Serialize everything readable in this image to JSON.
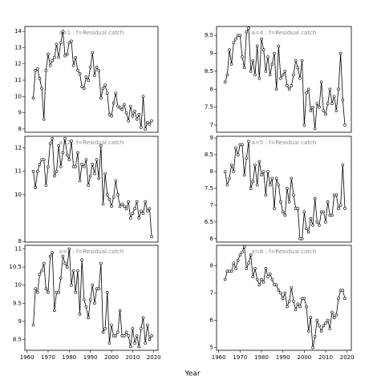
{
  "x_label": "Year",
  "chart_data": [
    {
      "type": "line",
      "title": "a=1 : f=Residual catch",
      "xlim": [
        1959,
        2022
      ],
      "ylim": [
        7.8,
        14.3
      ],
      "yticks": [
        8,
        9,
        10,
        11,
        12,
        13,
        14
      ],
      "x": [
        1963,
        1964,
        1965,
        1966,
        1967,
        1968,
        1969,
        1970,
        1971,
        1972,
        1973,
        1974,
        1975,
        1976,
        1977,
        1978,
        1979,
        1980,
        1981,
        1982,
        1983,
        1984,
        1985,
        1986,
        1987,
        1988,
        1989,
        1990,
        1991,
        1992,
        1993,
        1994,
        1995,
        1996,
        1997,
        1998,
        1999,
        2000,
        2001,
        2002,
        2003,
        2004,
        2005,
        2006,
        2007,
        2008,
        2009,
        2010,
        2011,
        2012,
        2013,
        2014,
        2015,
        2016,
        2017,
        2018,
        2019
      ],
      "series": [
        {
          "color": "#000000",
          "values": [
            9.9,
            11.6,
            11.7,
            11.1,
            10.5,
            8.6,
            11.6,
            12.6,
            11.9,
            12.2,
            12.4,
            13.2,
            12.4,
            13.3,
            14.0,
            12.5,
            12.6,
            13.3,
            13.4,
            11.9,
            12.4,
            11.6,
            11.4,
            10.6,
            10.5,
            11.2,
            11.0,
            11.8,
            12.7,
            11.3,
            11.8,
            11.6,
            9.9,
            10.5,
            10.7,
            10.2,
            8.9,
            8.8,
            9.6,
            10.2,
            9.4,
            9.3,
            9.2,
            9.5,
            9.0,
            8.5,
            9.4,
            8.8,
            9.1,
            8.6,
            8.9,
            8.1,
            10.0,
            8.0,
            8.4,
            8.3,
            8.5
          ]
        }
      ]
    },
    {
      "type": "line",
      "title": "a=2 : f=Residual catch",
      "xlim": [
        1959,
        2022
      ],
      "ylim": [
        7.97,
        12.5
      ],
      "yticks": [
        8,
        10,
        11,
        12
      ],
      "x": [
        1963,
        1964,
        1965,
        1966,
        1967,
        1968,
        1969,
        1970,
        1971,
        1972,
        1973,
        1974,
        1975,
        1976,
        1977,
        1978,
        1979,
        1980,
        1981,
        1982,
        1983,
        1984,
        1985,
        1986,
        1987,
        1988,
        1989,
        1990,
        1991,
        1992,
        1993,
        1994,
        1995,
        1996,
        1997,
        1998,
        1999,
        2000,
        2001,
        2002,
        2003,
        2004,
        2005,
        2006,
        2007,
        2008,
        2009,
        2010,
        2011,
        2012,
        2013,
        2014,
        2015,
        2016,
        2017,
        2018,
        2019
      ],
      "series": [
        {
          "color": "#000000",
          "values": [
            11.0,
            10.3,
            11.0,
            11.3,
            11.5,
            11.5,
            10.4,
            11.2,
            12.2,
            12.4,
            10.8,
            11.0,
            12.1,
            11.2,
            11.8,
            12.4,
            11.7,
            11.5,
            12.3,
            11.2,
            11.2,
            11.8,
            10.6,
            11.3,
            11.2,
            11.5,
            10.4,
            10.8,
            11.3,
            10.9,
            11.5,
            10.7,
            12.1,
            9.6,
            10.9,
            10.0,
            9.8,
            9.5,
            9.9,
            10.6,
            10.0,
            9.5,
            9.6,
            9.5,
            9.4,
            9.7,
            9.0,
            9.2,
            9.4,
            9.7,
            9.0,
            9.3,
            9.2,
            9.7,
            9.3,
            9.4,
            8.2
          ]
        }
      ]
    },
    {
      "type": "line",
      "title": "a=3 : f=Residual catch",
      "xlim": [
        1959,
        2022
      ],
      "ylim": [
        8.2,
        11.1
      ],
      "yticks": [
        8.5,
        9.0,
        9.5,
        10.0,
        10.5,
        11.0
      ],
      "xticks": [
        1960,
        1970,
        1980,
        1990,
        2000,
        2010,
        2020
      ],
      "x": [
        1963,
        1964,
        1965,
        1966,
        1967,
        1968,
        1969,
        1970,
        1971,
        1972,
        1973,
        1974,
        1975,
        1976,
        1977,
        1978,
        1979,
        1980,
        1981,
        1982,
        1983,
        1984,
        1985,
        1986,
        1987,
        1988,
        1989,
        1990,
        1991,
        1992,
        1993,
        1994,
        1995,
        1996,
        1997,
        1998,
        1999,
        2000,
        2001,
        2002,
        2003,
        2004,
        2005,
        2006,
        2007,
        2008,
        2009,
        2010,
        2011,
        2012,
        2013,
        2014,
        2015,
        2016,
        2017,
        2018,
        2019
      ],
      "series": [
        {
          "color": "#000000",
          "values": [
            8.9,
            9.9,
            9.8,
            10.3,
            10.4,
            10.6,
            9.9,
            9.8,
            10.8,
            10.9,
            9.3,
            9.8,
            9.8,
            10.2,
            10.8,
            10.6,
            10.5,
            11.0,
            10.0,
            10.4,
            9.8,
            10.4,
            9.2,
            10.7,
            9.6,
            9.4,
            9.1,
            9.6,
            10.0,
            9.5,
            9.9,
            9.9,
            10.6,
            8.7,
            8.8,
            9.8,
            8.4,
            8.9,
            8.6,
            8.6,
            8.7,
            9.3,
            8.6,
            8.6,
            8.7,
            8.6,
            8.3,
            8.8,
            8.4,
            8.6,
            8.3,
            8.8,
            9.1,
            8.4,
            8.9,
            8.5,
            8.6
          ]
        }
      ]
    },
    {
      "type": "line",
      "title": "a=4 : f=Residual catch",
      "xlim": [
        1959,
        2022
      ],
      "ylim": [
        6.8,
        9.75
      ],
      "yticks": [
        7.0,
        7.5,
        8.0,
        8.5,
        9.0,
        9.5
      ],
      "x": [
        1963,
        1964,
        1965,
        1966,
        1967,
        1968,
        1969,
        1970,
        1971,
        1972,
        1973,
        1974,
        1975,
        1976,
        1977,
        1978,
        1979,
        1980,
        1981,
        1982,
        1983,
        1984,
        1985,
        1986,
        1987,
        1988,
        1989,
        1990,
        1991,
        1992,
        1993,
        1994,
        1995,
        1996,
        1997,
        1998,
        1999,
        2000,
        2001,
        2002,
        2003,
        2004,
        2005,
        2006,
        2007,
        2008,
        2009,
        2010,
        2011,
        2012,
        2013,
        2014,
        2015,
        2016,
        2017,
        2018,
        2019
      ],
      "series": [
        {
          "color": "#000000",
          "values": [
            8.2,
            8.4,
            9.1,
            8.7,
            9.3,
            9.4,
            9.5,
            9.5,
            8.9,
            8.6,
            9.6,
            9.7,
            8.5,
            8.8,
            8.4,
            9.2,
            8.3,
            9.4,
            9.1,
            8.5,
            8.9,
            8.4,
            8.7,
            9.0,
            8.0,
            9.2,
            8.3,
            8.4,
            8.5,
            8.1,
            8.0,
            8.1,
            8.4,
            8.8,
            8.6,
            8.3,
            8.8,
            7.0,
            7.9,
            8.0,
            7.4,
            7.5,
            6.9,
            7.6,
            7.5,
            8.2,
            7.4,
            7.3,
            7.6,
            8.0,
            7.6,
            7.8,
            7.4,
            8.0,
            9.0,
            7.7,
            7.0
          ]
        }
      ]
    },
    {
      "type": "line",
      "title": "a=5 : f=Residual catch",
      "xlim": [
        1959,
        2022
      ],
      "ylim": [
        5.9,
        9.05
      ],
      "yticks": [
        6.0,
        6.5,
        7.0,
        7.5,
        8.0,
        8.5,
        9.0
      ],
      "x": [
        1963,
        1964,
        1965,
        1966,
        1967,
        1968,
        1969,
        1970,
        1971,
        1972,
        1973,
        1974,
        1975,
        1976,
        1977,
        1978,
        1979,
        1980,
        1981,
        1982,
        1983,
        1984,
        1985,
        1986,
        1987,
        1988,
        1989,
        1990,
        1991,
        1992,
        1993,
        1994,
        1995,
        1996,
        1997,
        1998,
        1999,
        2000,
        2001,
        2002,
        2003,
        2004,
        2005,
        2006,
        2007,
        2008,
        2009,
        2010,
        2011,
        2012,
        2013,
        2014,
        2015,
        2016,
        2017,
        2018,
        2019
      ],
      "series": [
        {
          "color": "#000000",
          "values": [
            8.0,
            7.6,
            7.8,
            8.2,
            8.0,
            8.7,
            8.5,
            8.8,
            8.8,
            7.9,
            8.4,
            8.9,
            7.5,
            7.7,
            8.2,
            7.6,
            8.3,
            7.9,
            8.0,
            7.3,
            8.0,
            7.6,
            7.8,
            6.9,
            7.8,
            7.6,
            7.1,
            6.8,
            6.7,
            7.5,
            7.1,
            7.8,
            7.3,
            6.9,
            6.9,
            6.0,
            6.0,
            6.8,
            6.3,
            6.2,
            6.6,
            6.4,
            7.2,
            6.5,
            6.4,
            6.8,
            6.8,
            6.5,
            7.1,
            6.7,
            6.7,
            7.3,
            7.3,
            6.9,
            7.0,
            8.2,
            6.9
          ]
        }
      ]
    },
    {
      "type": "line",
      "title": "a=6 : f=Residual catch",
      "xlim": [
        1959,
        2022
      ],
      "ylim": [
        4.9,
        8.75
      ],
      "yticks": [
        5,
        6,
        7,
        8
      ],
      "xticks": [
        1960,
        1970,
        1980,
        1990,
        2000,
        2010,
        2020
      ],
      "x": [
        1963,
        1964,
        1965,
        1966,
        1967,
        1968,
        1969,
        1970,
        1971,
        1972,
        1973,
        1974,
        1975,
        1976,
        1977,
        1978,
        1979,
        1980,
        1981,
        1982,
        1983,
        1984,
        1985,
        1986,
        1987,
        1988,
        1989,
        1990,
        1991,
        1992,
        1993,
        1994,
        1995,
        1996,
        1997,
        1998,
        1999,
        2000,
        2001,
        2002,
        2003,
        2004,
        2005,
        2006,
        2007,
        2008,
        2009,
        2010,
        2011,
        2012,
        2013,
        2014,
        2015,
        2016,
        2017,
        2018,
        2019
      ],
      "series": [
        {
          "color": "#000000",
          "values": [
            7.5,
            7.8,
            7.8,
            7.8,
            8.1,
            7.9,
            8.2,
            8.4,
            8.5,
            8.7,
            7.9,
            8.1,
            8.4,
            7.6,
            7.9,
            7.5,
            7.3,
            7.5,
            7.4,
            7.9,
            7.6,
            7.7,
            7.5,
            7.3,
            7.3,
            7.1,
            7.0,
            6.8,
            7.0,
            6.5,
            6.7,
            7.2,
            6.7,
            6.4,
            6.6,
            6.5,
            6.8,
            6.8,
            6.5,
            5.6,
            6.1,
            5.0,
            5.4,
            6.0,
            5.8,
            5.6,
            5.8,
            5.9,
            6.0,
            5.7,
            6.3,
            6.1,
            6.2,
            6.8,
            7.1,
            7.1,
            6.8
          ]
        }
      ]
    }
  ]
}
